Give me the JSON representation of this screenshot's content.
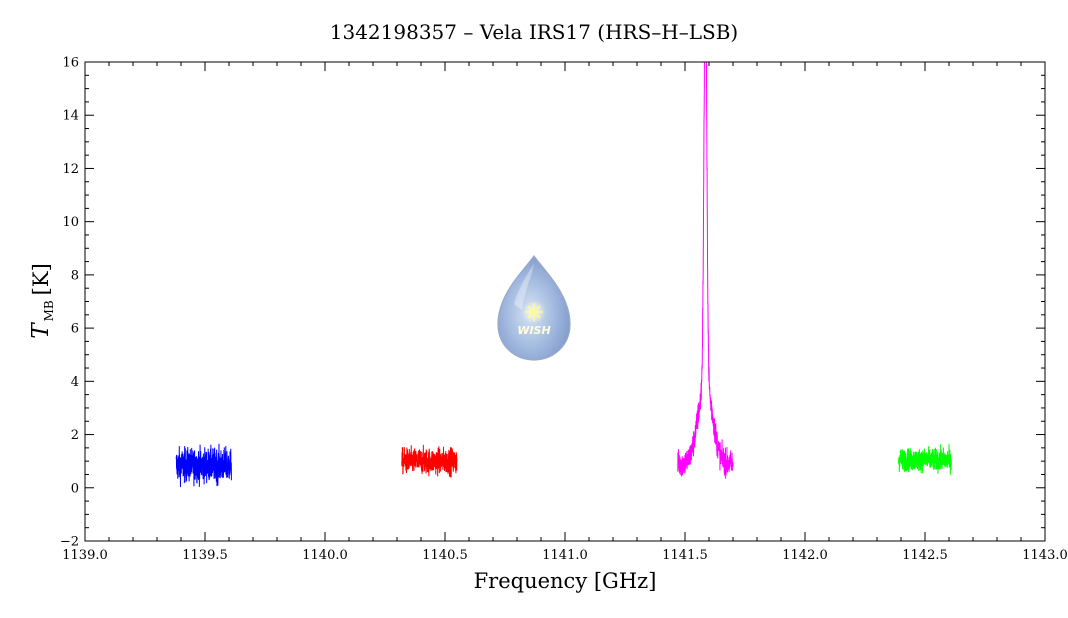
{
  "chart_data": {
    "type": "line",
    "title": "1342198357 – Vela IRS17 (HRS–H–LSB)",
    "xlabel": "Frequency [GHz]",
    "ylabel_symbol": "T",
    "ylabel_subscript": "MB",
    "ylabel_unit": "[K]",
    "xlim": [
      1139.0,
      1143.0
    ],
    "ylim": [
      -2,
      16
    ],
    "x_ticks": [
      "1139.0",
      "1139.5",
      "1140.0",
      "1140.5",
      "1141.0",
      "1141.5",
      "1142.0",
      "1142.5",
      "1143.0"
    ],
    "y_ticks": [
      "−2",
      "0",
      "2",
      "4",
      "6",
      "8",
      "10",
      "12",
      "14",
      "16"
    ],
    "grid": false,
    "legend": "none",
    "series": [
      {
        "color": "#0000ff",
        "x_range": [
          1139.38,
          1139.61
        ],
        "baseline": 0.85,
        "noise": 0.45,
        "peak": null
      },
      {
        "color": "#ff0000",
        "x_range": [
          1140.32,
          1140.55
        ],
        "baseline": 1.0,
        "noise": 0.35,
        "peak": null
      },
      {
        "color": "#ff00ff",
        "x_range": [
          1141.47,
          1141.7
        ],
        "baseline": 0.9,
        "noise": 0.35,
        "peak": {
          "x": 1141.585,
          "height": 15.2,
          "width": 0.006,
          "wing": 3.0,
          "wing_width": 0.03
        }
      },
      {
        "color": "#00ff00",
        "x_range": [
          1142.39,
          1142.61
        ],
        "baseline": 1.05,
        "noise": 0.3,
        "peak": null
      }
    ]
  },
  "logo": {
    "text": "WISH",
    "icon": "water-drop-star-icon"
  }
}
